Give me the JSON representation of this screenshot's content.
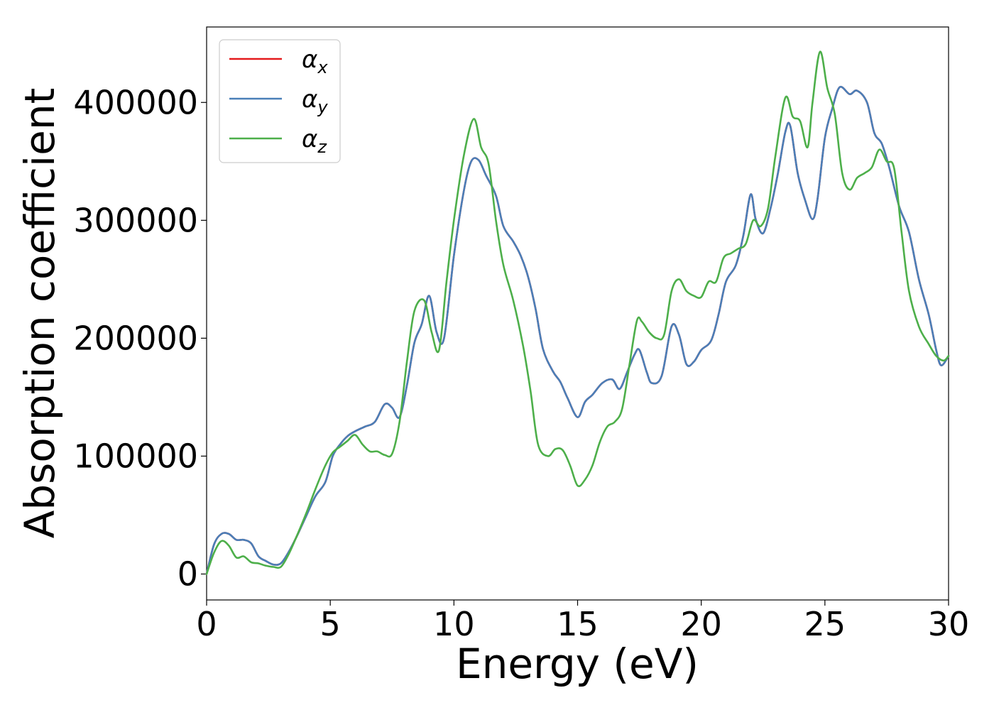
{
  "chart_data": {
    "type": "line",
    "title": "",
    "xlabel": "Energy (eV)",
    "ylabel": "Absorption coefficient",
    "xlim": [
      0,
      30
    ],
    "ylim": [
      -22000,
      464000
    ],
    "xticks": [
      0,
      5,
      10,
      15,
      20,
      25,
      30
    ],
    "xtick_labels": [
      "0",
      "5",
      "10",
      "15",
      "20",
      "25",
      "30"
    ],
    "yticks": [
      0,
      100000,
      200000,
      300000,
      400000
    ],
    "ytick_labels": [
      "0",
      "100000",
      "200000",
      "300000",
      "400000"
    ],
    "grid": false,
    "legend_position": "top-left",
    "series": [
      {
        "name": "α",
        "subscript": "x",
        "color": "#e41a1c",
        "x": [
          0,
          0.3,
          0.6,
          0.9,
          1.2,
          1.5,
          1.8,
          2.1,
          2.4,
          2.7,
          3.0,
          3.3,
          3.6,
          4.0,
          4.4,
          4.8,
          5.1,
          5.4,
          5.7,
          6.0,
          6.4,
          6.8,
          7.2,
          7.5,
          7.8,
          8.1,
          8.4,
          8.7,
          9.0,
          9.3,
          9.6,
          10.0,
          10.4,
          10.7,
          11.0,
          11.3,
          11.7,
          12.0,
          12.4,
          12.7,
          13.0,
          13.3,
          13.6,
          14.0,
          14.3,
          14.6,
          15.0,
          15.3,
          15.6,
          16.0,
          16.4,
          16.7,
          17.0,
          17.3,
          17.5,
          17.8,
          18.0,
          18.4,
          18.8,
          19.1,
          19.4,
          19.7,
          20.0,
          20.4,
          20.7,
          21.0,
          21.4,
          21.7,
          22.0,
          22.2,
          22.5,
          22.8,
          23.1,
          23.4,
          23.6,
          23.9,
          24.2,
          24.5,
          24.7,
          25.0,
          25.3,
          25.6,
          26.0,
          26.3,
          26.7,
          27.0,
          27.3,
          27.6,
          28.0,
          28.4,
          28.8,
          29.2,
          29.5,
          29.7,
          30.0
        ],
        "values": [
          0,
          25000,
          34000,
          34000,
          29000,
          29000,
          26000,
          15000,
          11000,
          8000,
          9000,
          18000,
          30000,
          48000,
          66000,
          78000,
          100000,
          110000,
          117000,
          121000,
          125000,
          129000,
          144000,
          141000,
          133000,
          160000,
          196000,
          212000,
          236000,
          205000,
          200000,
          270000,
          325000,
          350000,
          351000,
          338000,
          321000,
          295000,
          282000,
          270000,
          252000,
          225000,
          191000,
          172000,
          163000,
          149000,
          133000,
          146000,
          152000,
          162000,
          165000,
          157000,
          171000,
          186000,
          190000,
          171000,
          162000,
          168000,
          210000,
          203000,
          178000,
          180000,
          190000,
          198000,
          220000,
          248000,
          262000,
          287000,
          322000,
          301000,
          289000,
          310000,
          340000,
          375000,
          380000,
          340000,
          317000,
          301000,
          318000,
          370000,
          395000,
          413000,
          407000,
          410000,
          400000,
          374000,
          365000,
          345000,
          312000,
          290000,
          250000,
          220000,
          190000,
          177000,
          185000
        ]
      },
      {
        "name": "α",
        "subscript": "y",
        "color": "#4a7fb8",
        "x": [
          0,
          0.3,
          0.6,
          0.9,
          1.2,
          1.5,
          1.8,
          2.1,
          2.4,
          2.7,
          3.0,
          3.3,
          3.6,
          4.0,
          4.4,
          4.8,
          5.1,
          5.4,
          5.7,
          6.0,
          6.4,
          6.8,
          7.2,
          7.5,
          7.8,
          8.1,
          8.4,
          8.7,
          9.0,
          9.3,
          9.6,
          10.0,
          10.4,
          10.7,
          11.0,
          11.3,
          11.7,
          12.0,
          12.4,
          12.7,
          13.0,
          13.3,
          13.6,
          14.0,
          14.3,
          14.6,
          15.0,
          15.3,
          15.6,
          16.0,
          16.4,
          16.7,
          17.0,
          17.3,
          17.5,
          17.8,
          18.0,
          18.4,
          18.8,
          19.1,
          19.4,
          19.7,
          20.0,
          20.4,
          20.7,
          21.0,
          21.4,
          21.7,
          22.0,
          22.2,
          22.5,
          22.8,
          23.1,
          23.4,
          23.6,
          23.9,
          24.2,
          24.5,
          24.7,
          25.0,
          25.3,
          25.6,
          26.0,
          26.3,
          26.7,
          27.0,
          27.3,
          27.6,
          28.0,
          28.4,
          28.8,
          29.2,
          29.5,
          29.7,
          30.0
        ],
        "values": [
          0,
          25000,
          34000,
          34000,
          29000,
          29000,
          26000,
          15000,
          11000,
          8000,
          9000,
          18000,
          30000,
          48000,
          66000,
          78000,
          100000,
          110000,
          117000,
          121000,
          125000,
          129000,
          144000,
          141000,
          133000,
          160000,
          196000,
          212000,
          236000,
          205000,
          200000,
          270000,
          325000,
          350000,
          351000,
          338000,
          321000,
          295000,
          282000,
          270000,
          252000,
          225000,
          191000,
          172000,
          163000,
          149000,
          133000,
          146000,
          152000,
          162000,
          165000,
          157000,
          171000,
          186000,
          190000,
          171000,
          162000,
          168000,
          210000,
          203000,
          178000,
          180000,
          190000,
          198000,
          220000,
          248000,
          262000,
          287000,
          322000,
          301000,
          289000,
          310000,
          340000,
          375000,
          380000,
          340000,
          317000,
          301000,
          318000,
          370000,
          395000,
          413000,
          407000,
          410000,
          400000,
          374000,
          365000,
          345000,
          312000,
          290000,
          250000,
          220000,
          190000,
          177000,
          185000
        ]
      },
      {
        "name": "α",
        "subscript": "z",
        "color": "#4daf4a",
        "x": [
          0,
          0.3,
          0.6,
          0.9,
          1.2,
          1.5,
          1.8,
          2.1,
          2.4,
          2.7,
          3.0,
          3.3,
          3.6,
          4.0,
          4.4,
          4.8,
          5.1,
          5.4,
          5.7,
          6.0,
          6.3,
          6.6,
          6.9,
          7.2,
          7.5,
          7.8,
          8.1,
          8.4,
          8.8,
          9.1,
          9.4,
          9.7,
          10.0,
          10.4,
          10.8,
          11.1,
          11.4,
          11.7,
          12.0,
          12.4,
          12.8,
          13.1,
          13.4,
          13.8,
          14.1,
          14.4,
          14.7,
          15.0,
          15.3,
          15.6,
          15.9,
          16.2,
          16.5,
          16.8,
          17.1,
          17.4,
          17.6,
          17.9,
          18.2,
          18.5,
          18.8,
          19.1,
          19.4,
          19.7,
          20.0,
          20.3,
          20.6,
          20.9,
          21.2,
          21.5,
          21.8,
          22.1,
          22.4,
          22.7,
          23.0,
          23.4,
          23.7,
          24.0,
          24.3,
          24.5,
          24.8,
          25.1,
          25.4,
          25.7,
          26.0,
          26.3,
          26.6,
          26.9,
          27.2,
          27.5,
          27.8,
          28.1,
          28.4,
          28.8,
          29.2,
          29.5,
          29.8,
          30.0
        ],
        "values": [
          0,
          18000,
          28000,
          24000,
          14000,
          15000,
          10000,
          9000,
          7000,
          6000,
          6000,
          16000,
          30000,
          50000,
          72000,
          92000,
          103000,
          108000,
          113000,
          118000,
          110000,
          104000,
          104000,
          101000,
          102000,
          129000,
          180000,
          223000,
          232000,
          205000,
          190000,
          248000,
          300000,
          355000,
          386000,
          362000,
          348000,
          300000,
          262000,
          232000,
          193000,
          155000,
          110000,
          100000,
          106000,
          105000,
          92000,
          75000,
          80000,
          92000,
          112000,
          125000,
          129000,
          140000,
          178000,
          215000,
          214000,
          205000,
          200000,
          203000,
          240000,
          250000,
          240000,
          236000,
          235000,
          248000,
          248000,
          268000,
          272000,
          276000,
          280000,
          300000,
          295000,
          310000,
          355000,
          404000,
          388000,
          384000,
          362000,
          400000,
          443000,
          412000,
          390000,
          340000,
          326000,
          336000,
          340000,
          345000,
          360000,
          350000,
          344000,
          290000,
          240000,
          210000,
          195000,
          185000,
          181000,
          185000
        ]
      }
    ]
  }
}
